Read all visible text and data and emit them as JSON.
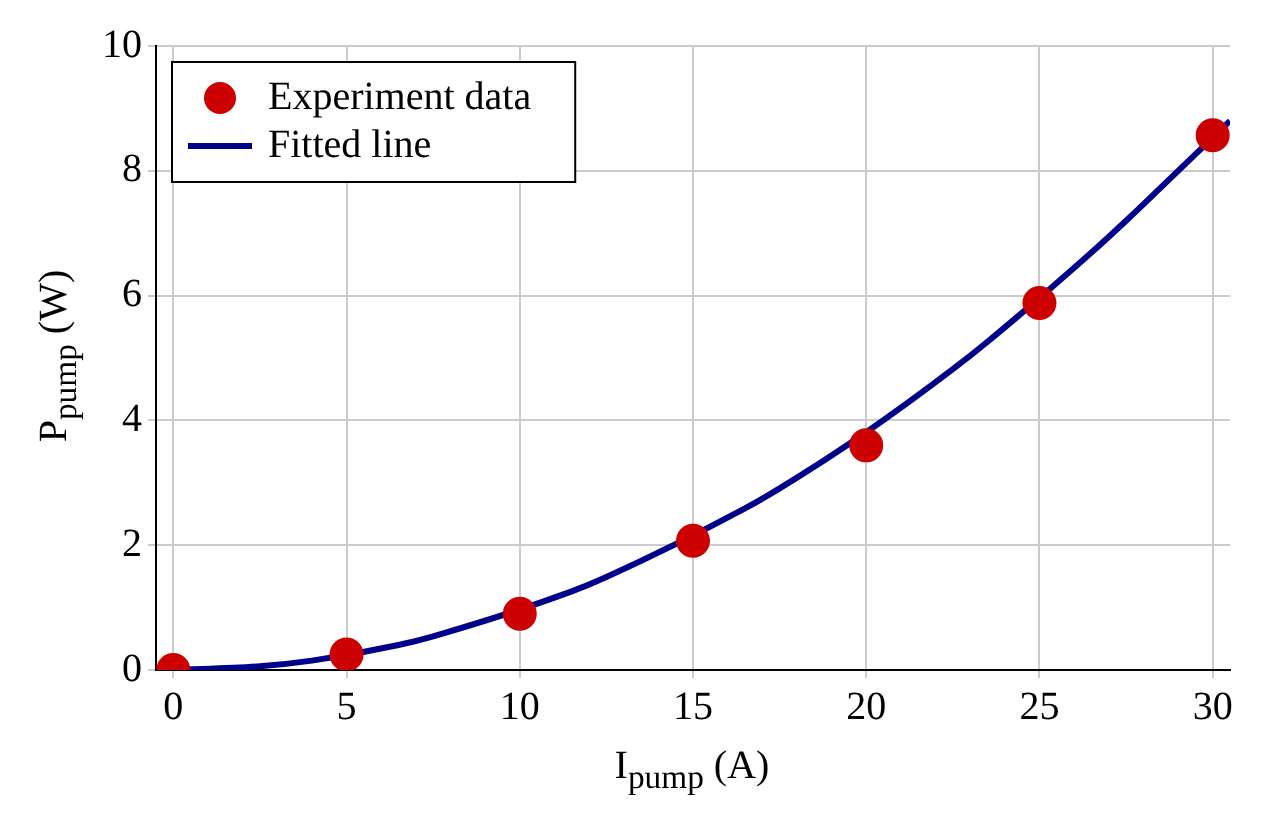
{
  "chart_data": {
    "type": "scatter",
    "xlabel": "I$_{pump}$ (A)",
    "ylabel": "P$_{pump}$ (W)",
    "xlim": [
      -0.5,
      30.5
    ],
    "ylim": [
      0,
      10
    ],
    "xticks": [
      0,
      5,
      10,
      15,
      20,
      25,
      30
    ],
    "yticks": [
      0,
      2,
      4,
      6,
      8,
      10
    ],
    "grid": true,
    "legend": "top left",
    "marker": "circle",
    "series": [
      {
        "name": "Experiment data",
        "color": "#cc0000",
        "x": [
          0,
          5,
          10,
          15,
          20,
          25,
          30
        ],
        "values": [
          0,
          0.25,
          0.9,
          2.07,
          3.6,
          5.88,
          8.57
        ]
      },
      {
        "name": "Fitted line",
        "type": "line",
        "color": "#00008b",
        "marker": "none",
        "line_style": "solid",
        "x": [
          0,
          2.5,
          4,
          6.5,
          7.5,
          11.5,
          12.5,
          16.5,
          17.5,
          20,
          22.5,
          23.5,
          26.5,
          27.5,
          28.5,
          30.5
        ],
        "values": [
          0,
          0.06,
          0.15,
          0.4,
          0.54,
          1.26,
          1.49,
          2.59,
          2.91,
          3.81,
          4.82,
          5.26,
          6.69,
          7.2,
          7.73,
          8.8
        ]
      }
    ]
  }
}
